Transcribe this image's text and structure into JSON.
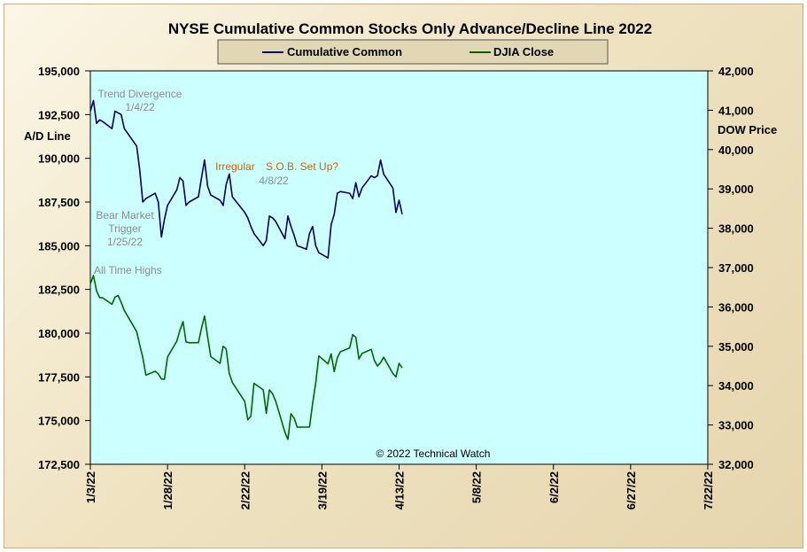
{
  "chart_data": {
    "type": "line",
    "title": "NYSE Cumulative Common Stocks Only Advance/Decline Line 2022",
    "ylabel_left": "A/D Line",
    "ylabel_right": "DOW Price",
    "ylim_left": [
      172500,
      195000
    ],
    "ylim_right": [
      32000,
      42000
    ],
    "yticks_left": [
      "195,000",
      "192,500",
      "190,000",
      "187,500",
      "185,000",
      "182,500",
      "180,000",
      "177,500",
      "175,000",
      "172,500"
    ],
    "yticks_right": [
      "42,000",
      "41,000",
      "40,000",
      "39,000",
      "38,000",
      "37,000",
      "36,000",
      "35,000",
      "34,000",
      "33,000",
      "32,000"
    ],
    "xlim": [
      "2022-01-03",
      "2022-07-22"
    ],
    "xticks": [
      "1/3/22",
      "1/28/22",
      "2/22/22",
      "3/19/22",
      "4/13/22",
      "5/8/22",
      "6/2/22",
      "6/27/22",
      "7/22/22"
    ],
    "grid": false,
    "legend_position": "top-center",
    "credit": "© 2022 Technical Watch",
    "series": [
      {
        "name": "Cumulative Common",
        "axis": "left",
        "color": "#000066",
        "x": [
          "2022-01-03",
          "2022-01-04",
          "2022-01-05",
          "2022-01-06",
          "2022-01-07",
          "2022-01-10",
          "2022-01-11",
          "2022-01-12",
          "2022-01-13",
          "2022-01-14",
          "2022-01-18",
          "2022-01-19",
          "2022-01-20",
          "2022-01-21",
          "2022-01-24",
          "2022-01-25",
          "2022-01-26",
          "2022-01-27",
          "2022-01-28",
          "2022-01-31",
          "2022-02-01",
          "2022-02-02",
          "2022-02-03",
          "2022-02-04",
          "2022-02-07",
          "2022-02-08",
          "2022-02-09",
          "2022-02-10",
          "2022-02-11",
          "2022-02-14",
          "2022-02-15",
          "2022-02-16",
          "2022-02-17",
          "2022-02-18",
          "2022-02-22",
          "2022-02-23",
          "2022-02-24",
          "2022-02-25",
          "2022-02-28",
          "2022-03-01",
          "2022-03-02",
          "2022-03-03",
          "2022-03-04",
          "2022-03-07",
          "2022-03-08",
          "2022-03-09",
          "2022-03-10",
          "2022-03-11",
          "2022-03-14",
          "2022-03-15",
          "2022-03-16",
          "2022-03-17",
          "2022-03-18",
          "2022-03-21",
          "2022-03-22",
          "2022-03-23",
          "2022-03-24",
          "2022-03-25",
          "2022-03-28",
          "2022-03-29",
          "2022-03-30",
          "2022-03-31",
          "2022-04-01",
          "2022-04-04",
          "2022-04-05",
          "2022-04-06",
          "2022-04-07",
          "2022-04-08",
          "2022-04-11",
          "2022-04-12",
          "2022-04-13",
          "2022-04-14"
        ],
        "values": [
          192700,
          193300,
          192000,
          192200,
          192100,
          191700,
          192700,
          192600,
          192500,
          191700,
          190700,
          189300,
          187500,
          187700,
          188000,
          187500,
          185500,
          186500,
          187300,
          188200,
          188900,
          188700,
          187300,
          187500,
          187800,
          188900,
          189900,
          188400,
          187900,
          187600,
          187300,
          188500,
          189100,
          187800,
          186900,
          186600,
          186100,
          185700,
          185000,
          185300,
          186700,
          186600,
          186400,
          185400,
          186700,
          186100,
          185600,
          185000,
          184800,
          185700,
          186100,
          185000,
          184600,
          184300,
          186200,
          186800,
          188000,
          188100,
          188000,
          187700,
          188600,
          187800,
          188300,
          189000,
          188900,
          189000,
          189900,
          189100,
          188300,
          186900,
          187600,
          186800
        ],
        "note": "values read approximately from plot"
      },
      {
        "name": "DJIA Close",
        "axis": "right",
        "color": "#006600",
        "x": [
          "2022-01-03",
          "2022-01-04",
          "2022-01-05",
          "2022-01-06",
          "2022-01-07",
          "2022-01-10",
          "2022-01-11",
          "2022-01-12",
          "2022-01-13",
          "2022-01-14",
          "2022-01-18",
          "2022-01-19",
          "2022-01-20",
          "2022-01-21",
          "2022-01-24",
          "2022-01-25",
          "2022-01-26",
          "2022-01-27",
          "2022-01-28",
          "2022-01-31",
          "2022-02-01",
          "2022-02-02",
          "2022-02-03",
          "2022-02-04",
          "2022-02-07",
          "2022-02-08",
          "2022-02-09",
          "2022-02-10",
          "2022-02-11",
          "2022-02-14",
          "2022-02-15",
          "2022-02-16",
          "2022-02-17",
          "2022-02-18",
          "2022-02-22",
          "2022-02-23",
          "2022-02-24",
          "2022-02-25",
          "2022-02-28",
          "2022-03-01",
          "2022-03-02",
          "2022-03-03",
          "2022-03-04",
          "2022-03-07",
          "2022-03-08",
          "2022-03-09",
          "2022-03-10",
          "2022-03-11",
          "2022-03-14",
          "2022-03-15",
          "2022-03-16",
          "2022-03-17",
          "2022-03-18",
          "2022-03-21",
          "2022-03-22",
          "2022-03-23",
          "2022-03-24",
          "2022-03-25",
          "2022-03-28",
          "2022-03-29",
          "2022-03-30",
          "2022-03-31",
          "2022-04-01",
          "2022-04-04",
          "2022-04-05",
          "2022-04-06",
          "2022-04-07",
          "2022-04-08",
          "2022-04-11",
          "2022-04-12",
          "2022-04-13",
          "2022-04-14"
        ],
        "values": [
          36585,
          36800,
          36407,
          36236,
          36231,
          36068,
          36252,
          36290,
          36114,
          35912,
          35369,
          35029,
          34715,
          34265,
          34365,
          34298,
          34168,
          34160,
          34725,
          35131,
          35405,
          35629,
          35112,
          35089,
          35092,
          35463,
          35768,
          35242,
          34738,
          34566,
          35000,
          34935,
          34312,
          34079,
          33596,
          33131,
          33224,
          34058,
          33893,
          33294,
          33891,
          33795,
          33615,
          32818,
          32632,
          33286,
          33174,
          32944,
          32945,
          32945,
          33544,
          34063,
          34755,
          34553,
          34807,
          34358,
          34708,
          34862,
          34956,
          35294,
          35228,
          34679,
          34818,
          34922,
          34641,
          34497,
          34583,
          34721,
          34309,
          34220,
          34565,
          34451
        ],
        "note": "values read approximately from plot"
      }
    ],
    "annotations": [
      {
        "lines": [
          "Trend  Divergence",
          "1/4/22"
        ],
        "color": "#8c8c8c"
      },
      {
        "lines": [
          "Bear Market",
          "Trigger",
          "1/25/22"
        ],
        "color": "#8c8c8c"
      },
      {
        "lines": [
          "All Time Highs"
        ],
        "color": "#8c8c8c"
      },
      {
        "lines": [
          "Irregular",
          "S.O.B. Set Up?"
        ],
        "color": "#cc6600"
      },
      {
        "lines": [
          "4/8/22"
        ],
        "color": "#8c8c8c"
      }
    ]
  }
}
